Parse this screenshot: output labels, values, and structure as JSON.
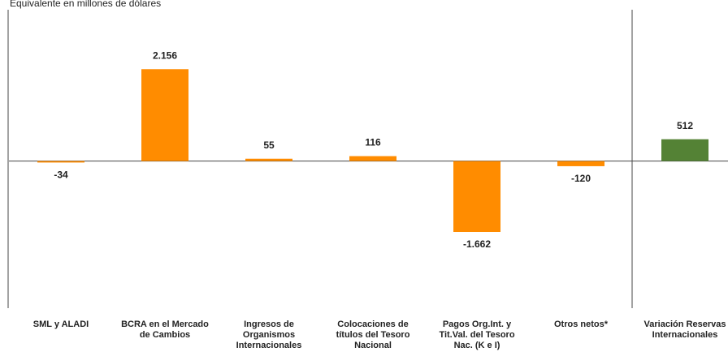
{
  "chart_data": {
    "type": "bar",
    "subtitle": "Equivalente en millones de dólares",
    "categories": [
      "SML y ALADI",
      "BCRA en el Mercado de Cambios",
      "Ingresos de Organismos Internacionales",
      "Colocaciones de títulos del Tesoro Nacional",
      "Pagos Org.Int. y Tit.Val. del Tesoro Nac. (K e I)",
      "Otros netos*",
      "Variación Reservas Internacionales"
    ],
    "values": [
      -34,
      2156,
      55,
      116,
      -1662,
      -120,
      512
    ],
    "value_labels": [
      "-34",
      "2.156",
      "55",
      "116",
      "-1.662",
      "-120",
      "512"
    ],
    "colors": [
      "#ff8c00",
      "#ff8c00",
      "#ff8c00",
      "#ff8c00",
      "#ff8c00",
      "#ff8c00",
      "#548235"
    ],
    "ylim": [
      -3450,
      3550
    ]
  }
}
